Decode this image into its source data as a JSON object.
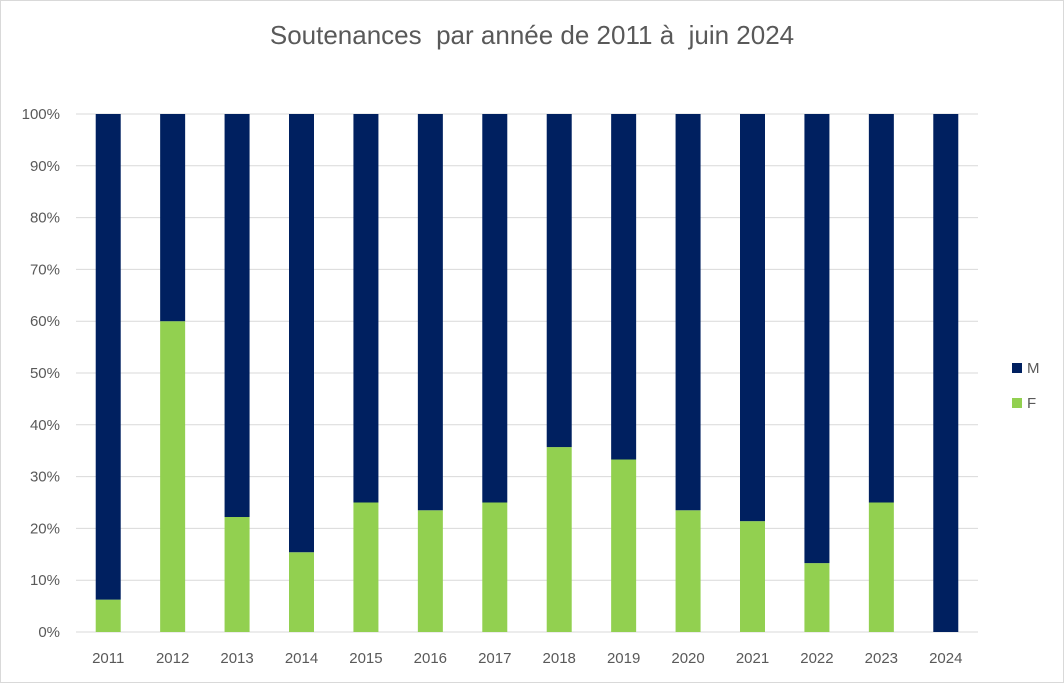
{
  "chart_data": {
    "type": "bar",
    "stacked": true,
    "title": "Soutenances  par année de 2011 à  juin 2024",
    "categories": [
      "2011",
      "2012",
      "2013",
      "2014",
      "2015",
      "2016",
      "2017",
      "2018",
      "2019",
      "2020",
      "2021",
      "2022",
      "2023",
      "2024"
    ],
    "series": [
      {
        "name": "F",
        "color": "#92d050",
        "values": [
          6.25,
          60,
          22.2,
          15.4,
          25,
          23.5,
          25,
          35.7,
          33.3,
          23.5,
          21.4,
          13.3,
          25,
          0
        ]
      },
      {
        "name": "M",
        "color": "#002060",
        "values": [
          93.75,
          40,
          77.8,
          84.6,
          75,
          76.5,
          75,
          64.3,
          66.7,
          76.5,
          78.6,
          86.7,
          75,
          100
        ]
      }
    ],
    "ylim": [
      0,
      100
    ],
    "yticks": [
      "0%",
      "10%",
      "20%",
      "30%",
      "40%",
      "50%",
      "60%",
      "70%",
      "80%",
      "90%",
      "100%"
    ],
    "grid": true,
    "legend": {
      "position": "right",
      "order": [
        "M",
        "F"
      ]
    }
  }
}
